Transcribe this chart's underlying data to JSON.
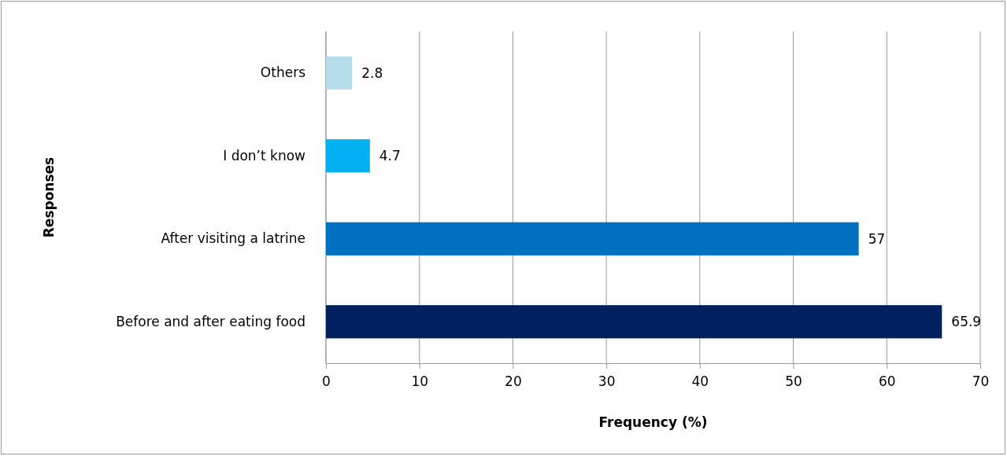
{
  "chart_data": {
    "type": "bar",
    "orientation": "horizontal",
    "xlabel": "Frequency (%)",
    "ylabel": "Responses",
    "categories": [
      "Others",
      "I don’t know",
      "After visiting a latrine",
      "Before and after eating food"
    ],
    "values": [
      2.8,
      4.7,
      57,
      65.9
    ],
    "colors": [
      "#b7dee8",
      "#00b0f0",
      "#0070c0",
      "#002060"
    ],
    "xlim": [
      0,
      70
    ],
    "xticks": [
      0,
      10,
      20,
      30,
      40,
      50,
      60,
      70
    ],
    "grid": "x",
    "data_labels": true
  }
}
